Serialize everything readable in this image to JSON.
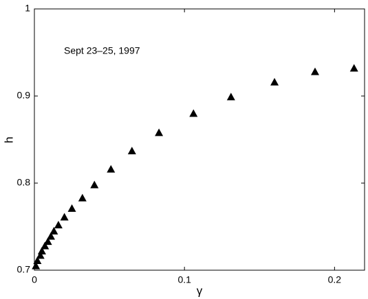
{
  "chart_data": {
    "type": "scatter",
    "annotation": "Sept 23–25, 1997",
    "xlabel": "γ",
    "ylabel": "h",
    "x": [
      0.213,
      0.187,
      0.16,
      0.131,
      0.106,
      0.083,
      0.065,
      0.051,
      0.04,
      0.032,
      0.025,
      0.02,
      0.016,
      0.013,
      0.011,
      0.009,
      0.007,
      0.005,
      0.004,
      0.002,
      0.001
    ],
    "values": [
      0.932,
      0.928,
      0.916,
      0.899,
      0.88,
      0.858,
      0.837,
      0.816,
      0.798,
      0.783,
      0.771,
      0.761,
      0.752,
      0.745,
      0.739,
      0.733,
      0.728,
      0.722,
      0.717,
      0.711,
      0.705
    ],
    "color": "#000000",
    "xlim": [
      0,
      0.22
    ],
    "xticks": [
      0,
      0.1,
      0.2
    ],
    "ylim": [
      0.7,
      1
    ],
    "yticks": [
      0.7,
      0.8,
      0.9,
      1
    ]
  }
}
